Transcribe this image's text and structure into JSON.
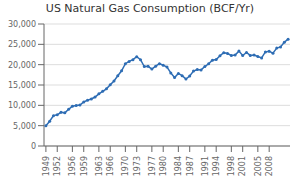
{
  "chart_data": {
    "type": "line",
    "title": "US Natural Gas Consumption (BCF/Yr)",
    "x": [
      1949,
      1950,
      1951,
      1952,
      1953,
      1954,
      1955,
      1956,
      1957,
      1958,
      1959,
      1960,
      1961,
      1962,
      1963,
      1964,
      1965,
      1966,
      1967,
      1968,
      1969,
      1970,
      1971,
      1972,
      1973,
      1974,
      1975,
      1976,
      1977,
      1978,
      1979,
      1980,
      1981,
      1982,
      1983,
      1984,
      1985,
      1986,
      1987,
      1988,
      1989,
      1990,
      1991,
      1992,
      1993,
      1994,
      1995,
      1996,
      1997,
      1998,
      1999,
      2000,
      2001,
      2002,
      2003,
      2004,
      2005,
      2006,
      2007,
      2008,
      2009,
      2010,
      2011,
      2012,
      2013
    ],
    "values": [
      4975,
      6083,
      7466,
      7680,
      8272,
      8150,
      9020,
      9780,
      9941,
      10063,
      10818,
      11276,
      11556,
      12040,
      12818,
      13438,
      14062,
      15048,
      16007,
      17266,
      18499,
      20232,
      20801,
      21237,
      21947,
      21221,
      19538,
      19601,
      18917,
      19627,
      20241,
      19877,
      19406,
      17978,
      16834,
      17843,
      17281,
      16458,
      17202,
      18435,
      18797,
      18715,
      19535,
      20228,
      21088,
      21247,
      22207,
      22954,
      22739,
      22245,
      22374,
      23333,
      22255,
      23007,
      22278,
      22389,
      22012,
      21654,
      23127,
      23277,
      22837,
      24087,
      24369,
      25528,
      26276
    ],
    "color": "#2e6db4",
    "marker": "circle",
    "xlim": [
      1948.5,
      2013.5
    ],
    "xticks": [
      1949,
      1952,
      1956,
      1959,
      1963,
      1966,
      1970,
      1973,
      1977,
      1980,
      1984,
      1987,
      1991,
      1994,
      1998,
      2001,
      2005,
      2008
    ],
    "ylim": [
      0,
      30000
    ],
    "yticks": [
      0,
      {
        "value": 5000,
        "label": "5,000"
      },
      {
        "value": 10000,
        "label": "10,000"
      },
      {
        "value": 15000,
        "label": "15,000"
      },
      {
        "value": 20000,
        "label": "20,000"
      },
      {
        "value": 25000,
        "label": "25,000"
      },
      {
        "value": 30000,
        "label": "30,000"
      }
    ],
    "grid": true
  }
}
